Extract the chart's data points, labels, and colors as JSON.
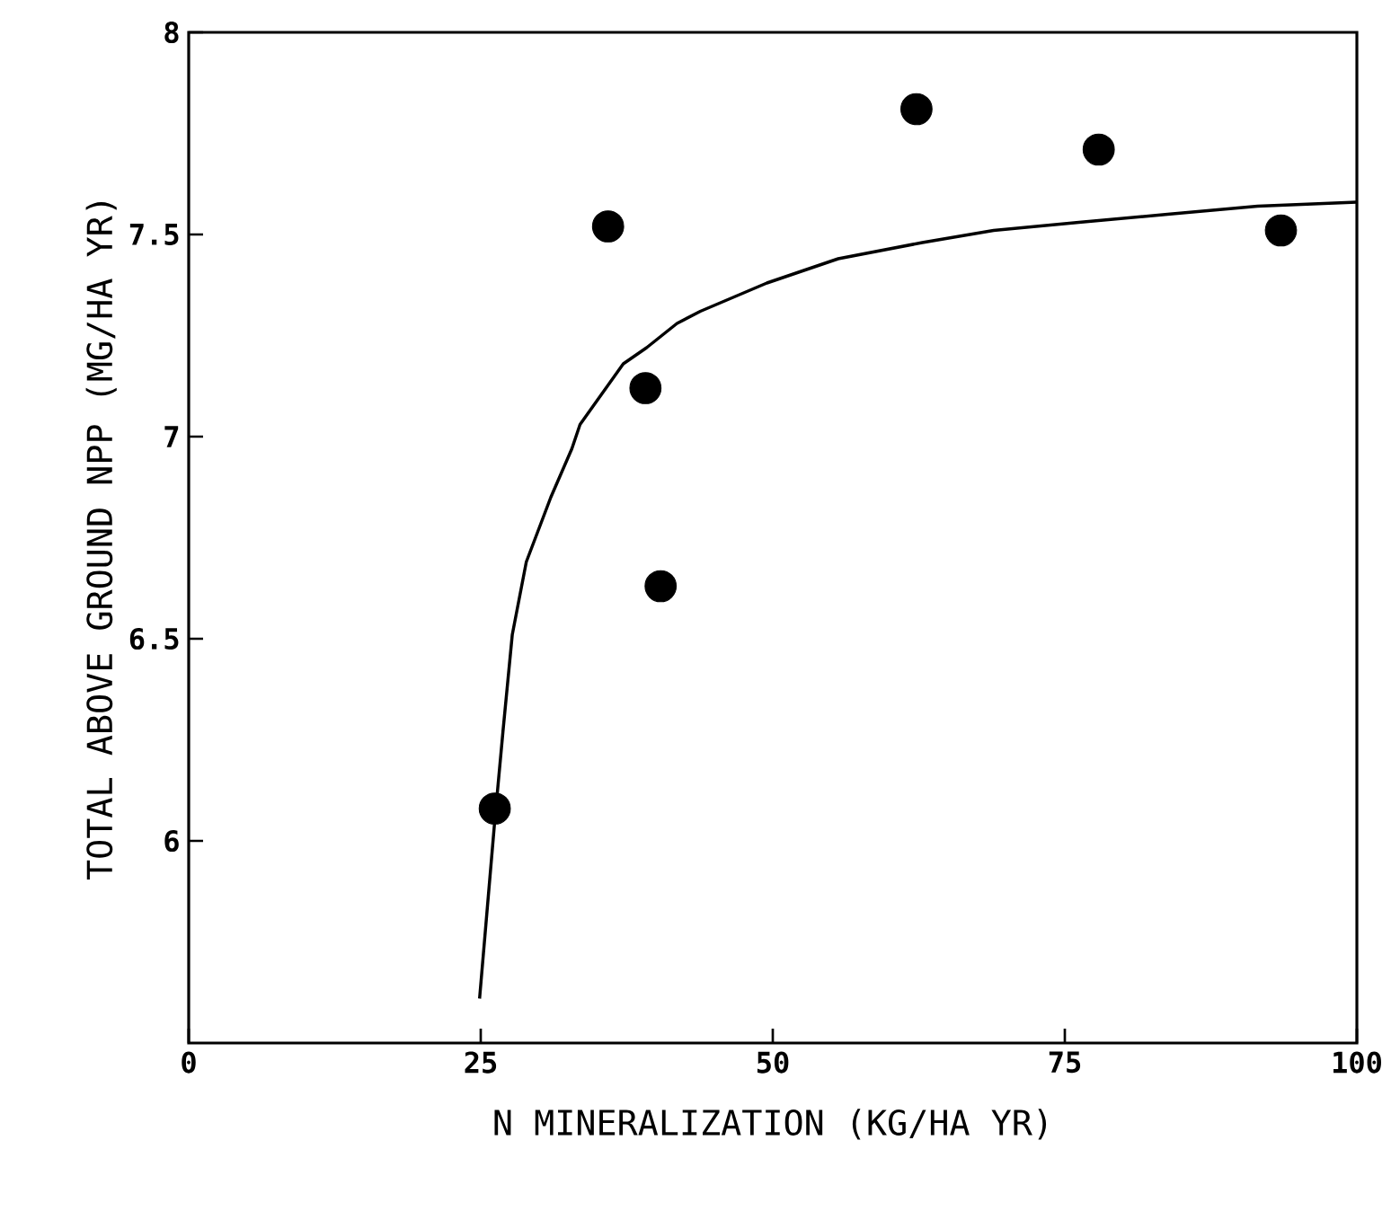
{
  "chart_data": {
    "type": "scatter",
    "xlabel": "N MINERALIZATION (KG/HA YR)",
    "ylabel": "TOTAL ABOVE GROUND NPP (MG/HA YR)",
    "xlim": [
      0,
      100
    ],
    "ylim": [
      5.5,
      8
    ],
    "xticks": [
      0,
      25,
      50,
      75,
      100
    ],
    "yticks": [
      6,
      6.5,
      7,
      7.5,
      8
    ],
    "series": [
      {
        "type": "scatter",
        "marker": "circle",
        "color": "#000000",
        "x": [
          26.2,
          35.9,
          39.1,
          40.4,
          62.3,
          77.9,
          93.5
        ],
        "values": [
          6.08,
          7.52,
          7.12,
          6.63,
          7.81,
          7.71,
          7.51
        ]
      },
      {
        "type": "line",
        "marker": "none",
        "line_style": "solid",
        "color": "#000000",
        "x": [
          24.9,
          26.2,
          26.9,
          27.7,
          28.9,
          31.0,
          32.8,
          33.5,
          37.2,
          39.2,
          41.8,
          43.8,
          49.5,
          55.6,
          62.8,
          68.9,
          76.2,
          83.8,
          91.5,
          100
        ],
        "values": [
          5.61,
          6.05,
          6.27,
          6.51,
          6.69,
          6.85,
          6.97,
          7.03,
          7.18,
          7.22,
          7.28,
          7.31,
          7.38,
          7.44,
          7.48,
          7.51,
          7.53,
          7.55,
          7.57,
          7.58
        ]
      }
    ]
  }
}
